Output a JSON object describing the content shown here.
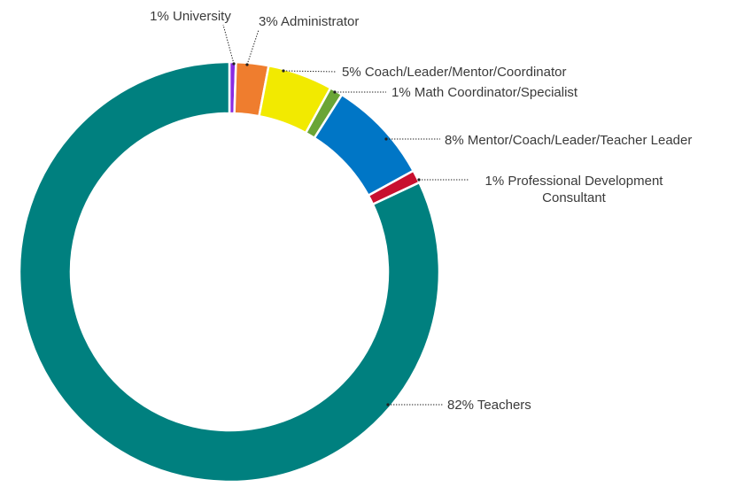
{
  "chart_data": {
    "type": "pie",
    "variant": "donut",
    "slices": [
      {
        "label": "University",
        "text": "1% University",
        "value": 0.5,
        "color": "#8a2be2"
      },
      {
        "label": "Administrator",
        "text": "3% Administrator",
        "value": 2.5,
        "color": "#ef7d2e"
      },
      {
        "label": "Coach/Leader/Mentor/Coordinator",
        "text": "5% Coach/Leader/Mentor/Coordinator",
        "value": 5.0,
        "color": "#f2ea00"
      },
      {
        "label": "Math Coordinator/Specialist",
        "text": "1% Math Coordinator/Specialist",
        "value": 1.0,
        "color": "#6aa536"
      },
      {
        "label": "Mentor/Coach/Leader/Teacher Leader",
        "text": "8% Mentor/Coach/Leader/Teacher Leader",
        "value": 8.0,
        "color": "#0076c6"
      },
      {
        "label": "Professional Development Consultant",
        "text": [
          "1% Professional Development",
          "Consultant"
        ],
        "value": 1.0,
        "color": "#c8102e"
      },
      {
        "label": "Teachers",
        "text": "82% Teachers",
        "value": 82.0,
        "color": "#00807f"
      }
    ],
    "legend": "none"
  }
}
